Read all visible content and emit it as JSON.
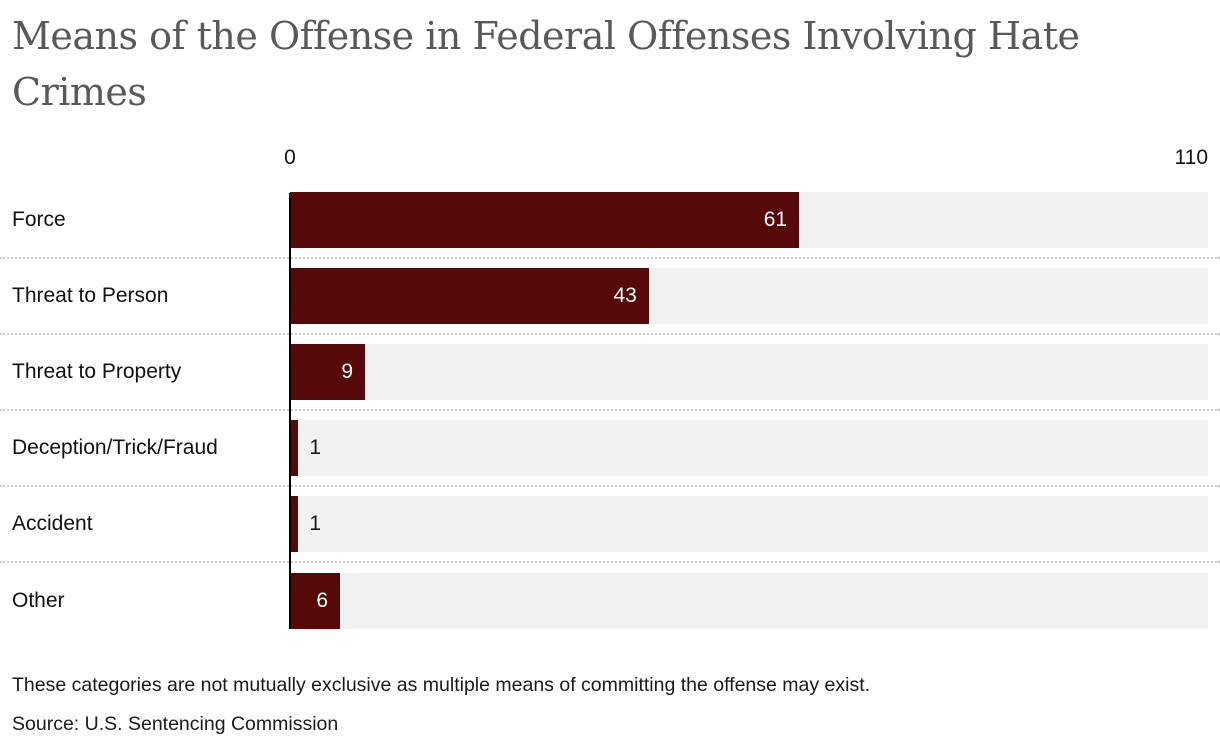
{
  "title": "Means of the Offense in Federal Offenses Involving Hate Crimes",
  "axis": {
    "min_label": "0",
    "max_label": "110"
  },
  "chart_data": {
    "type": "bar",
    "orientation": "horizontal",
    "title": "Means of the Offense in Federal Offenses Involving Hate Crimes",
    "categories": [
      "Force",
      "Threat to Person",
      "Threat to Property",
      "Deception/Trick/Fraud",
      "Accident",
      "Other"
    ],
    "values": [
      61,
      43,
      9,
      1,
      1,
      6
    ],
    "xlim": [
      0,
      110
    ],
    "x_ticks": [
      0,
      110
    ],
    "grid": false,
    "legend": false,
    "bar_color": "#570909",
    "track_color": "#f1f1f1",
    "value_label_inside_min": 6
  },
  "footer": {
    "note": "These categories are not mutually exclusive as multiple means of committing the offense may exist.",
    "source": "Source: U.S. Sentencing Commission"
  }
}
